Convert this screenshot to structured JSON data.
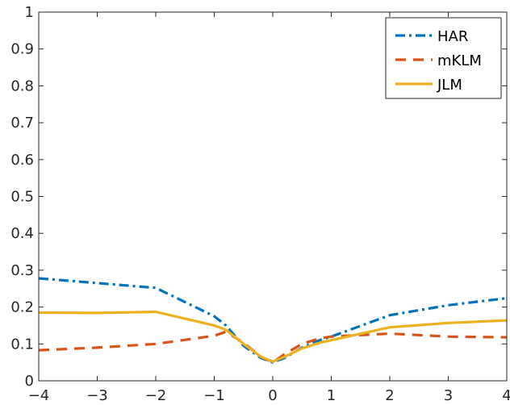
{
  "chart_data": {
    "type": "line",
    "x": [
      -4,
      -3,
      -2,
      -1,
      -0.8,
      -0.5,
      -0.2,
      0,
      0.2,
      0.5,
      0.8,
      1,
      2,
      3,
      4
    ],
    "xlim": [
      -4,
      4
    ],
    "ylim": [
      0,
      1
    ],
    "xticks": [
      "−4",
      "−3",
      "−2",
      "−1",
      "0",
      "1",
      "2",
      "3",
      "4"
    ],
    "yticks": [
      "0",
      "0.1",
      "0.2",
      "0.3",
      "0.4",
      "0.5",
      "0.6",
      "0.7",
      "0.8",
      "0.9",
      "1"
    ],
    "grid": false,
    "legend_position": "top-right",
    "series": [
      {
        "name": "HAR",
        "color": "#0072BD",
        "style": "dashdot",
        "values": [
          0.278,
          0.265,
          0.252,
          0.175,
          0.15,
          0.095,
          0.062,
          0.05,
          0.062,
          0.09,
          0.11,
          0.12,
          0.178,
          0.205,
          0.224
        ]
      },
      {
        "name": "mKLM",
        "color": "#D95319",
        "style": "dashed",
        "values": [
          0.083,
          0.09,
          0.1,
          0.122,
          0.133,
          0.103,
          0.065,
          0.05,
          0.072,
          0.1,
          0.115,
          0.12,
          0.128,
          0.12,
          0.118
        ]
      },
      {
        "name": "JLM",
        "color": "#EDB120",
        "style": "solid",
        "values": [
          0.185,
          0.184,
          0.187,
          0.15,
          0.138,
          0.1,
          0.065,
          0.052,
          0.065,
          0.088,
          0.103,
          0.11,
          0.145,
          0.157,
          0.164
        ]
      }
    ]
  }
}
